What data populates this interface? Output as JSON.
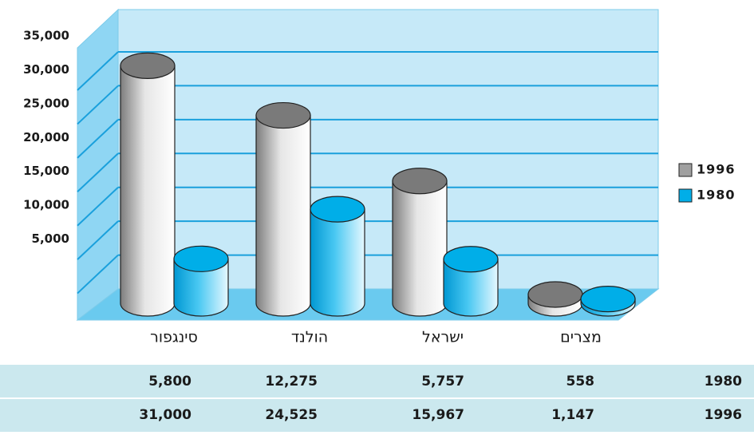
{
  "chart_data": {
    "type": "bar",
    "categories": [
      "סינגפור",
      "הולנד",
      "ישראל",
      "מצרים"
    ],
    "series": [
      {
        "name": "1996",
        "color": "#9a9a9a",
        "values": [
          31000,
          24525,
          15967,
          1147
        ],
        "value_labels": [
          "31,000",
          "24,525",
          "15,967",
          "1,147"
        ]
      },
      {
        "name": "1980",
        "color": "#00aee8",
        "values": [
          5800,
          12275,
          5757,
          558
        ],
        "value_labels": [
          "5,800",
          "12,275",
          "5,757",
          "558"
        ]
      }
    ],
    "ylim": [
      0,
      35000
    ],
    "yticks": [
      {
        "value": 5000,
        "label": "5,000"
      },
      {
        "value": 10000,
        "label": "10,000"
      },
      {
        "value": 15000,
        "label": "15,000"
      },
      {
        "value": 20000,
        "label": "20,000"
      },
      {
        "value": 25000,
        "label": "25,000"
      },
      {
        "value": 30000,
        "label": "30,000"
      },
      {
        "value": 35000,
        "label": "35,000"
      }
    ],
    "grid": true,
    "legend": "right",
    "table_rows": [
      "1980",
      "1996"
    ]
  }
}
